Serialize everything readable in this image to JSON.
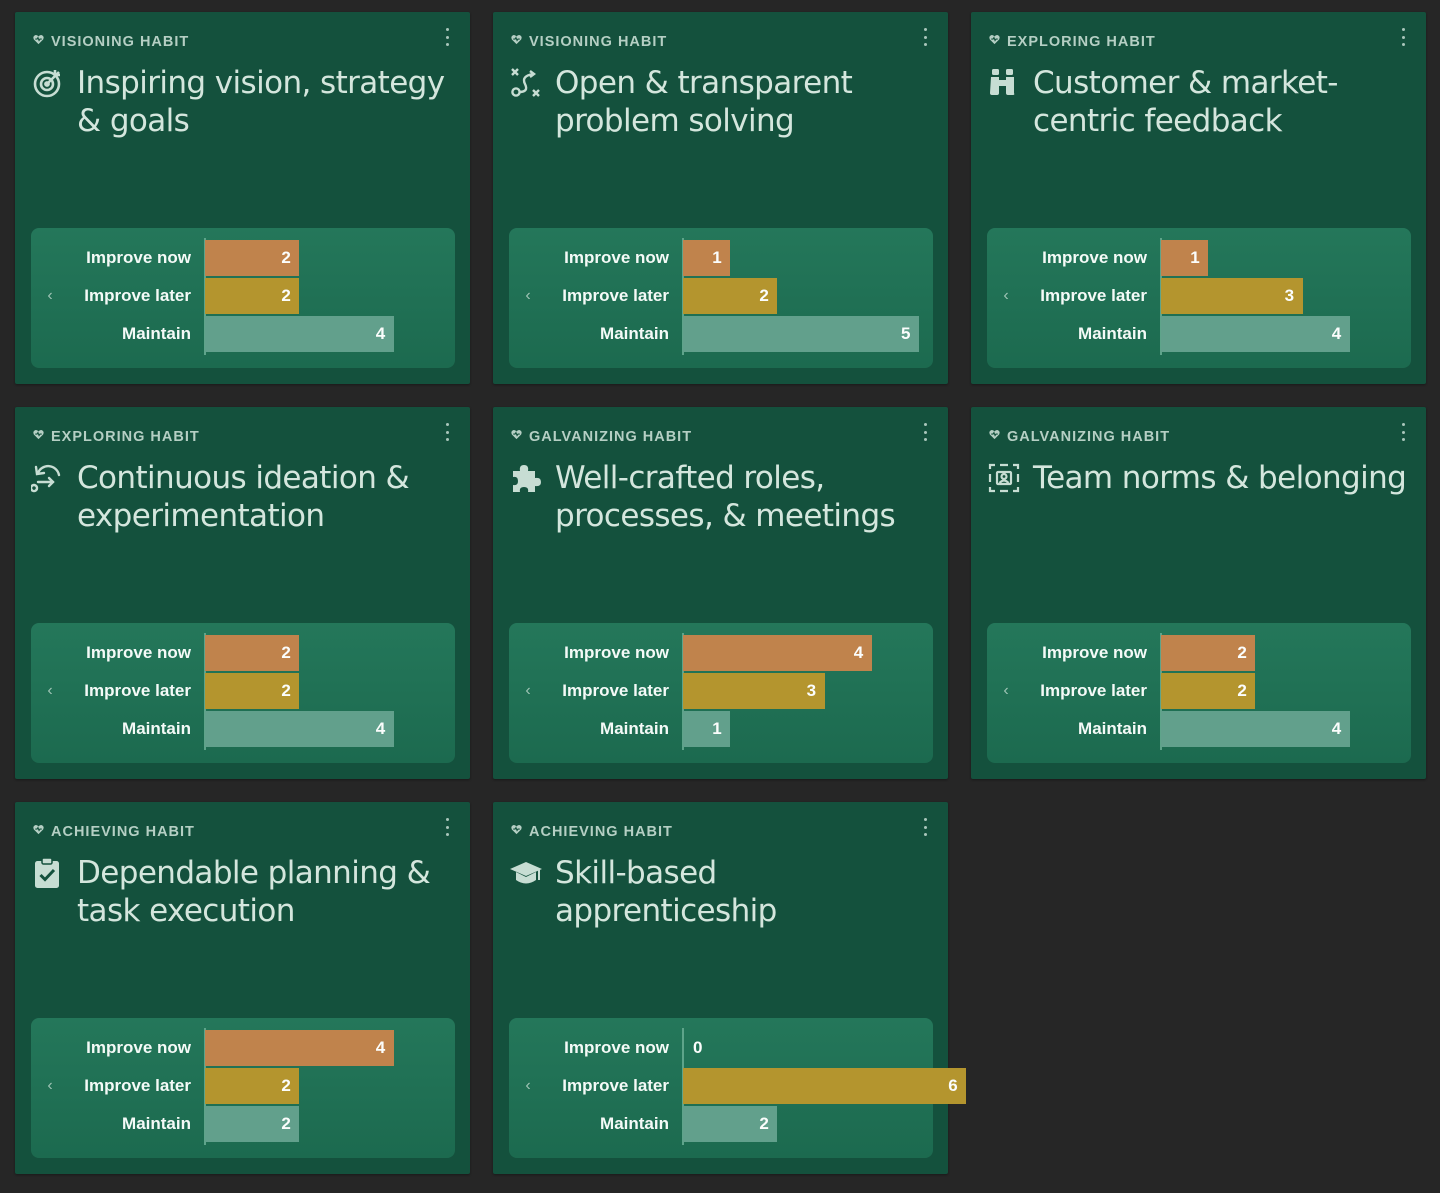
{
  "colors": {
    "page_bg": "#262626",
    "card_bg": "#14513d",
    "improve_now": "#c0834c",
    "improve_later": "#b4952e",
    "maintain": "#62a08c"
  },
  "row_labels": [
    "Improve now",
    "Improve later",
    "Maintain"
  ],
  "chart_scale_max": 6,
  "cards": [
    {
      "habit": "VISIONING HABIT",
      "title": "Inspiring vision, strategy & goals",
      "icon": "target-icon",
      "improve_now": 2,
      "improve_later": 2,
      "maintain": 4
    },
    {
      "habit": "VISIONING HABIT",
      "title": "Open & transparent problem solving",
      "icon": "route-icon",
      "improve_now": 1,
      "improve_later": 2,
      "maintain": 5
    },
    {
      "habit": "EXPLORING HABIT",
      "title": "Customer & market-centric feedback",
      "icon": "binoculars-icon",
      "improve_now": 1,
      "improve_later": 3,
      "maintain": 4
    },
    {
      "habit": "EXPLORING HABIT",
      "title": "Continuous ideation & experimentation",
      "icon": "rotate-arrow-icon",
      "improve_now": 2,
      "improve_later": 2,
      "maintain": 4
    },
    {
      "habit": "GALVANIZING HABIT",
      "title": "Well-crafted roles, processes, & meetings",
      "icon": "puzzle-icon",
      "improve_now": 4,
      "improve_later": 3,
      "maintain": 1
    },
    {
      "habit": "GALVANIZING HABIT",
      "title": "Team norms & belonging",
      "icon": "group-frame-icon",
      "improve_now": 2,
      "improve_later": 2,
      "maintain": 4
    },
    {
      "habit": "ACHIEVING HABIT",
      "title": "Dependable planning & task execution",
      "icon": "clipboard-check-icon",
      "improve_now": 4,
      "improve_later": 2,
      "maintain": 2
    },
    {
      "habit": "ACHIEVING HABIT",
      "title": "Skill-based apprenticeship",
      "icon": "graduation-cap-icon",
      "improve_now": 0,
      "improve_later": 6,
      "maintain": 2
    }
  ],
  "chart_data": [
    {
      "type": "bar",
      "orientation": "horizontal",
      "title": "Inspiring vision, strategy & goals",
      "categories": [
        "Improve now",
        "Improve later",
        "Maintain"
      ],
      "values": [
        2,
        2,
        4
      ]
    },
    {
      "type": "bar",
      "orientation": "horizontal",
      "title": "Open & transparent problem solving",
      "categories": [
        "Improve now",
        "Improve later",
        "Maintain"
      ],
      "values": [
        1,
        2,
        5
      ]
    },
    {
      "type": "bar",
      "orientation": "horizontal",
      "title": "Customer & market-centric feedback",
      "categories": [
        "Improve now",
        "Improve later",
        "Maintain"
      ],
      "values": [
        1,
        3,
        4
      ]
    },
    {
      "type": "bar",
      "orientation": "horizontal",
      "title": "Continuous ideation & experimentation",
      "categories": [
        "Improve now",
        "Improve later",
        "Maintain"
      ],
      "values": [
        2,
        2,
        4
      ]
    },
    {
      "type": "bar",
      "orientation": "horizontal",
      "title": "Well-crafted roles, processes, & meetings",
      "categories": [
        "Improve now",
        "Improve later",
        "Maintain"
      ],
      "values": [
        4,
        3,
        1
      ]
    },
    {
      "type": "bar",
      "orientation": "horizontal",
      "title": "Team norms & belonging",
      "categories": [
        "Improve now",
        "Improve later",
        "Maintain"
      ],
      "values": [
        2,
        2,
        4
      ]
    },
    {
      "type": "bar",
      "orientation": "horizontal",
      "title": "Dependable planning & task execution",
      "categories": [
        "Improve now",
        "Improve later",
        "Maintain"
      ],
      "values": [
        4,
        2,
        2
      ]
    },
    {
      "type": "bar",
      "orientation": "horizontal",
      "title": "Skill-based apprenticeship",
      "categories": [
        "Improve now",
        "Improve later",
        "Maintain"
      ],
      "values": [
        0,
        6,
        2
      ]
    }
  ]
}
